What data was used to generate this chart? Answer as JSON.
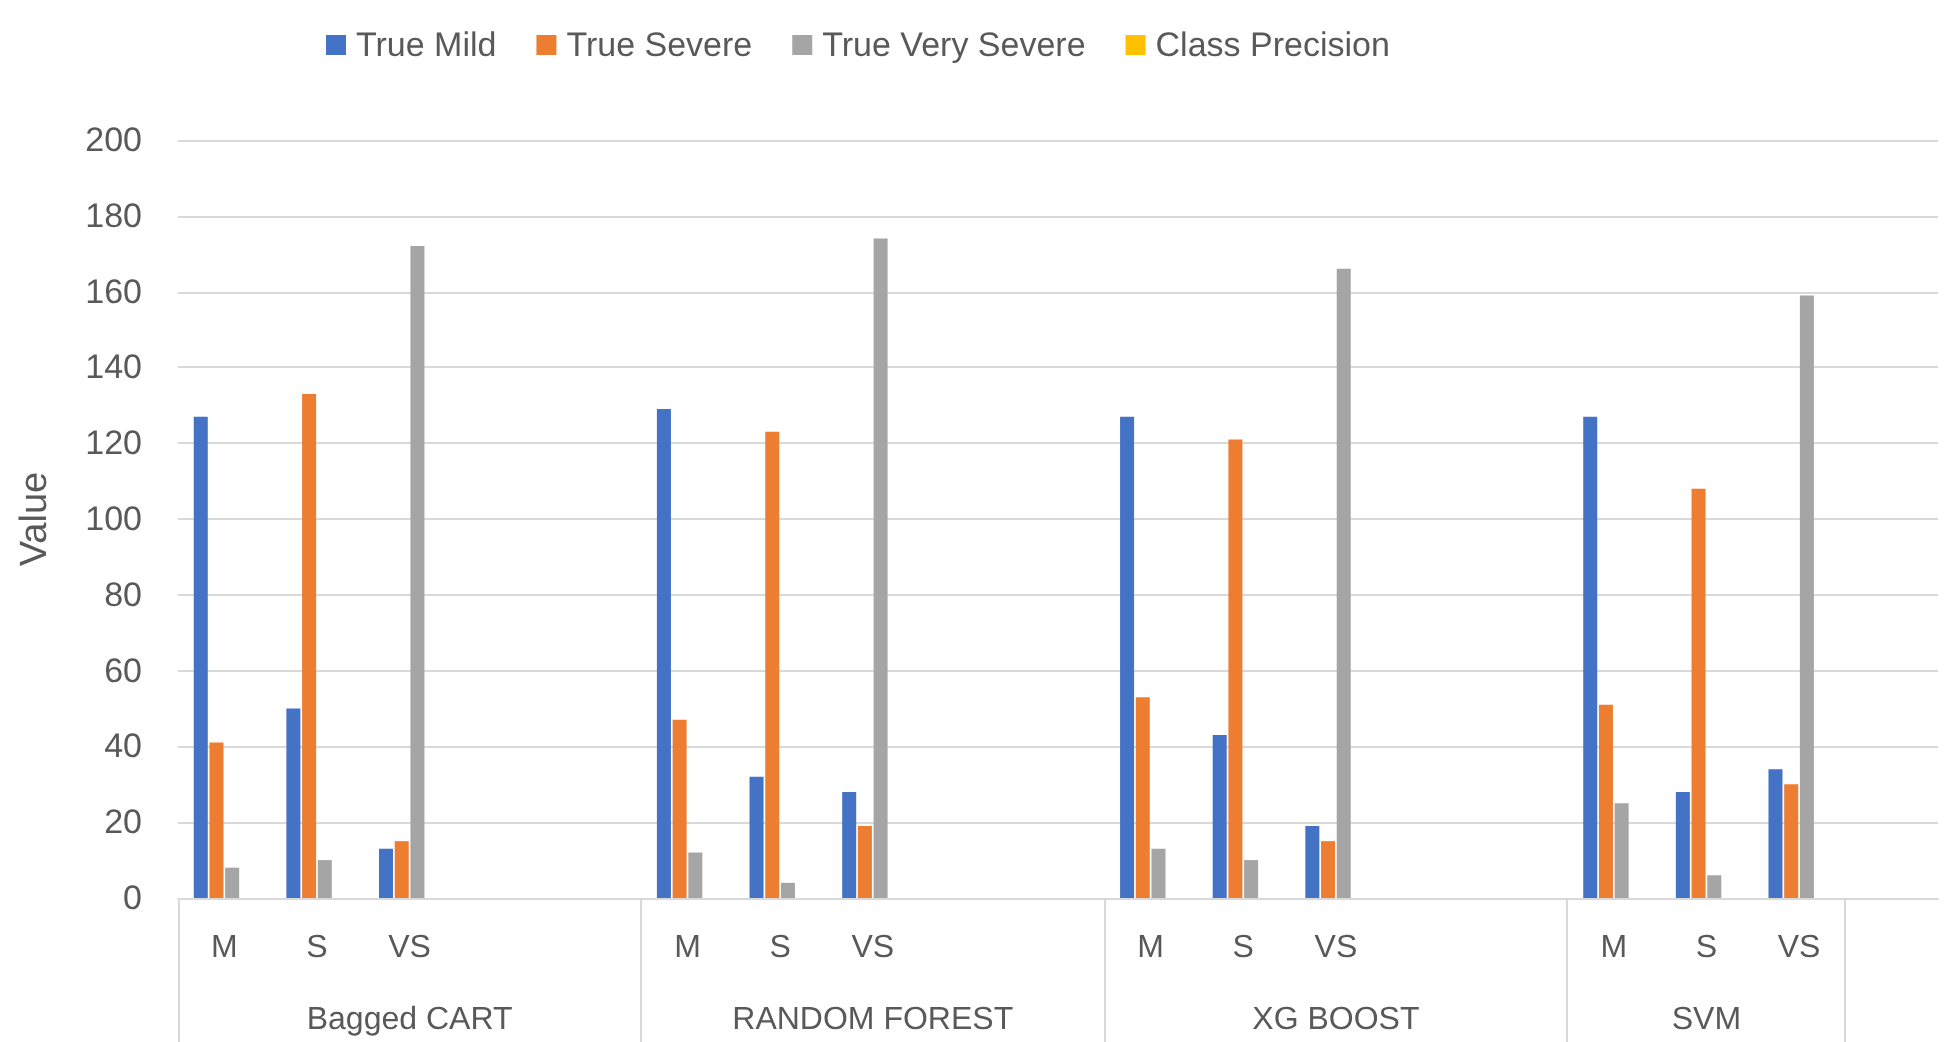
{
  "chart_data": {
    "type": "bar",
    "ylabel": "Value",
    "categories": [
      "M",
      "S",
      "VS",
      null,
      null,
      "M",
      "S",
      "VS",
      null,
      null,
      "M",
      "S",
      "VS",
      null,
      null,
      "M",
      "S",
      "VS",
      null
    ],
    "series": [
      {
        "name": "True Mild",
        "color": "#4472c4",
        "values": [
          127,
          50,
          13,
          null,
          null,
          129,
          32,
          28,
          null,
          null,
          127,
          43,
          19,
          null,
          null,
          127,
          28,
          34,
          null
        ]
      },
      {
        "name": "True Severe",
        "color": "#ed7d31",
        "values": [
          41,
          133,
          15,
          null,
          null,
          47,
          123,
          19,
          null,
          null,
          53,
          121,
          15,
          null,
          null,
          51,
          108,
          30,
          null
        ]
      },
      {
        "name": "True Very Severe",
        "color": "#a5a5a5",
        "values": [
          8,
          10,
          172,
          null,
          null,
          12,
          4,
          174,
          null,
          null,
          13,
          10,
          166,
          null,
          null,
          25,
          6,
          159,
          null
        ]
      },
      {
        "name": "Class Precision",
        "color": "#ffc000",
        "values": [
          null,
          null,
          null,
          null,
          null,
          null,
          null,
          null,
          null,
          null,
          null,
          null,
          null,
          null,
          null,
          null,
          null,
          null,
          null
        ]
      }
    ],
    "ylim": [
      0,
      200
    ],
    "yticks": [
      0,
      20,
      40,
      60,
      80,
      100,
      120,
      140,
      160,
      180,
      200
    ],
    "grid": "y",
    "legend": "top",
    "annotations": [
      "Bagged CART",
      "RANDOM FOREST",
      "XG BOOST",
      "SVM"
    ]
  }
}
